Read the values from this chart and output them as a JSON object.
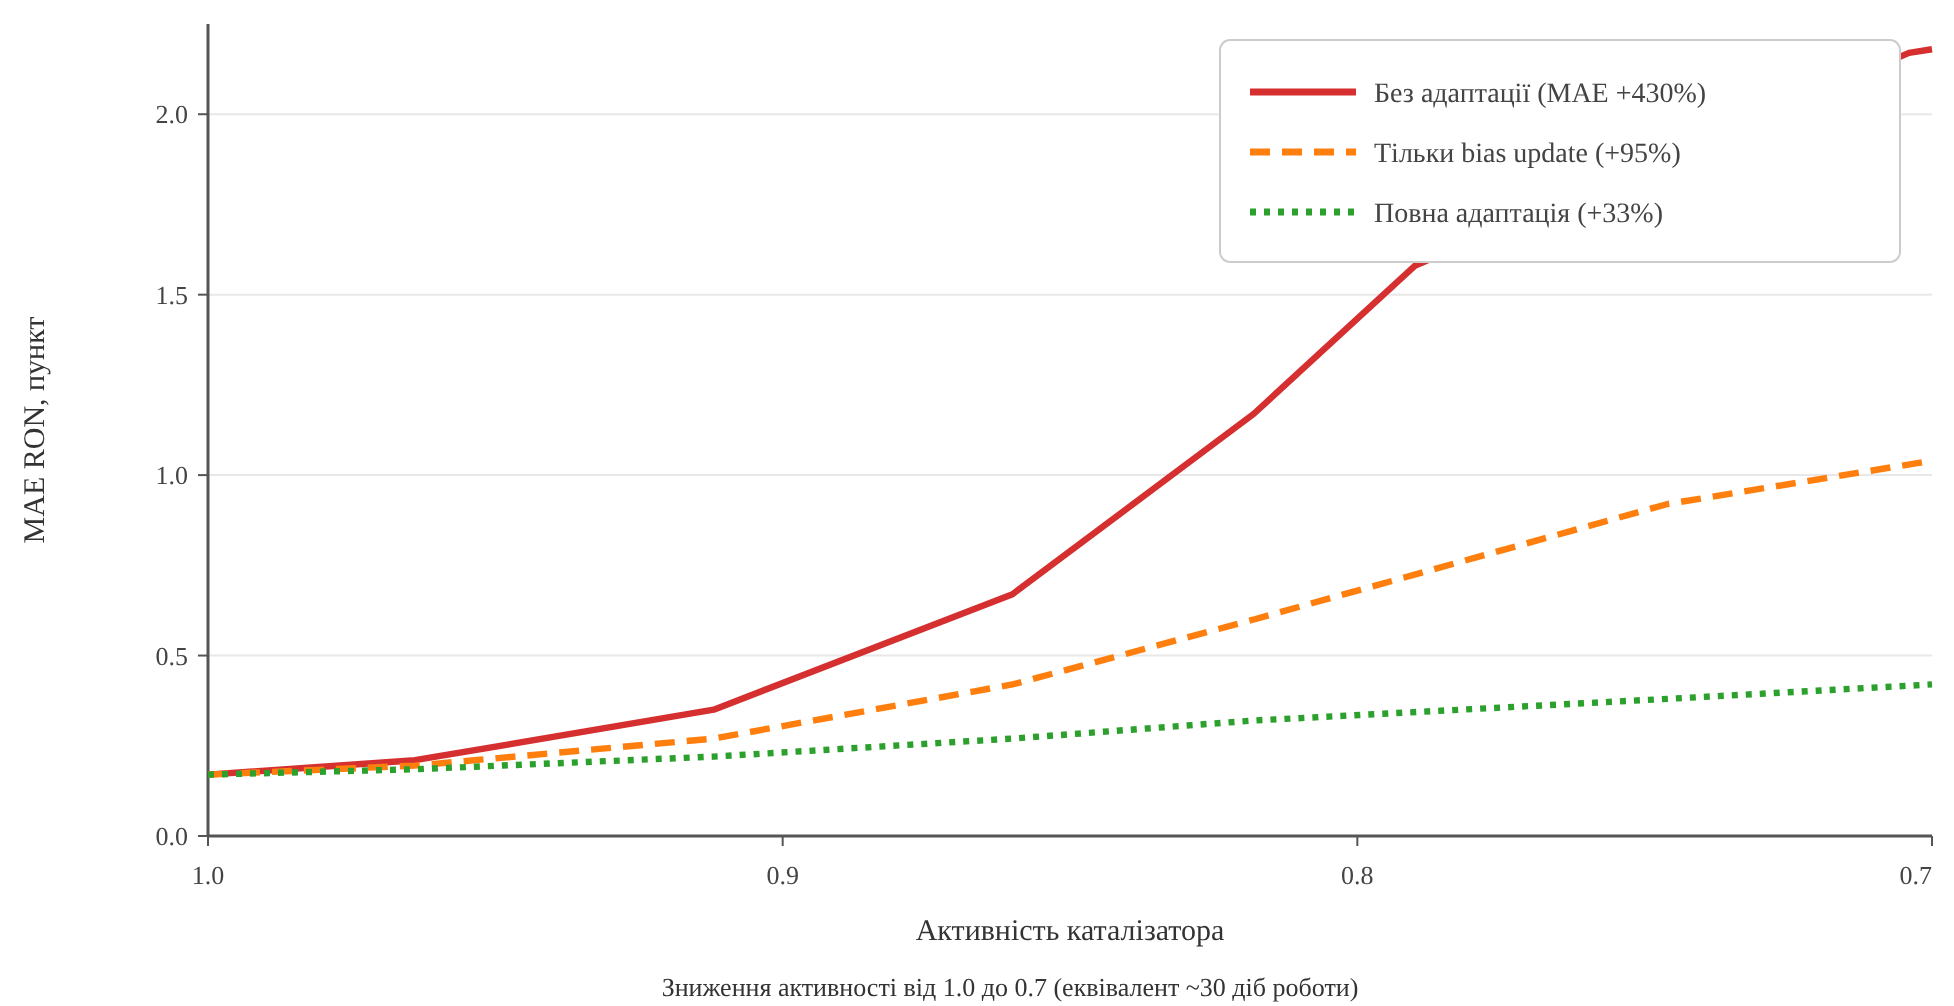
{
  "chart_data": {
    "type": "line",
    "xlabel": "Активність каталізатора",
    "ylabel": "MAE RON, пункт",
    "annotations": [
      "Зниження активності від 1.0 до 0.7 (еквівалент ~30 діб роботи)"
    ],
    "x": [
      1.0,
      0.964,
      0.912,
      0.86,
      0.818,
      0.746,
      0.7
    ],
    "series": [
      {
        "name": "Без адаптації (MAE +430%)",
        "color": "#d62f2f",
        "line_style": "solid",
        "x": [
          1.0,
          0.964,
          0.912,
          0.86,
          0.818,
          0.79,
          0.704,
          0.7
        ],
        "values": [
          0.17,
          0.21,
          0.35,
          0.67,
          1.17,
          1.58,
          2.17,
          2.18
        ]
      },
      {
        "name": "Тільки bias update (+95%)",
        "color": "#ff7f0e",
        "line_style": "dashed",
        "values": [
          0.17,
          0.195,
          0.27,
          0.42,
          0.6,
          0.92,
          1.04
        ]
      },
      {
        "name": "Повна адаптація (+33%)",
        "color": "#2ca02c",
        "line_style": "dotted",
        "values": [
          0.17,
          0.185,
          0.22,
          0.27,
          0.32,
          0.38,
          0.42
        ]
      }
    ],
    "xlim": [
      1.0,
      0.7
    ],
    "xticks": [
      {
        "value": 1.0,
        "label": "1.0"
      },
      0.9,
      0.8,
      0.7
    ],
    "ylim": [
      0,
      2.25
    ],
    "yticks": [
      {
        "value": 0,
        "label": "0.0"
      },
      0.5,
      {
        "value": 1,
        "label": "1.0"
      },
      1.5,
      {
        "value": 2,
        "label": "2.0"
      }
    ],
    "grid": "y",
    "legend": "top right"
  }
}
